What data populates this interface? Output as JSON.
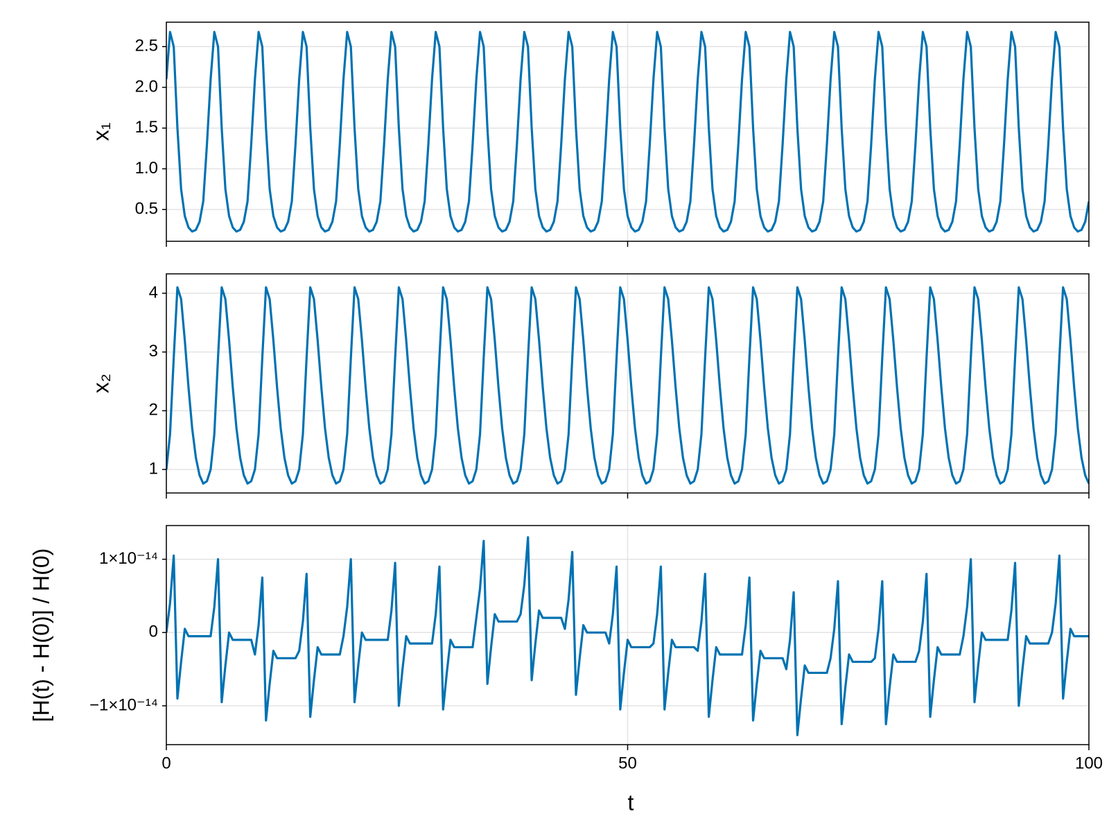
{
  "chart_data": {
    "type": "line",
    "xlabel": "t",
    "xlim": [
      0,
      100
    ],
    "xticks": [
      0,
      50,
      100
    ],
    "grid": true,
    "x": [
      0,
      0.4,
      0.8,
      1.2,
      1.6,
      2,
      2.4,
      2.8,
      3.2,
      3.6,
      4,
      4.4,
      4.8,
      5.2,
      5.6,
      6,
      6.4,
      6.8,
      7.2,
      7.6,
      8,
      8.4,
      8.8,
      9.2,
      9.6,
      10,
      10.4,
      10.8,
      11.2,
      11.6,
      12,
      12.4,
      12.8,
      13.2,
      13.6,
      14,
      14.4,
      14.8,
      15.2,
      15.6,
      16,
      16.4,
      16.8,
      17.2,
      17.6,
      18,
      18.4,
      18.8,
      19.2,
      19.6,
      20,
      20.4,
      20.8,
      21.2,
      21.6,
      22,
      22.4,
      22.8,
      23.2,
      23.6,
      24,
      24.4,
      24.8,
      25.2,
      25.6,
      26,
      26.4,
      26.8,
      27.2,
      27.6,
      28,
      28.4,
      28.8,
      29.2,
      29.6,
      30,
      30.4,
      30.8,
      31.2,
      31.6,
      32,
      32.4,
      32.8,
      33.2,
      33.6,
      34,
      34.4,
      34.8,
      35.2,
      35.6,
      36,
      36.4,
      36.8,
      37.2,
      37.6,
      38,
      38.4,
      38.8,
      39.2,
      39.6,
      40,
      40.4,
      40.8,
      41.2,
      41.6,
      42,
      42.4,
      42.8,
      43.2,
      43.6,
      44,
      44.4,
      44.8,
      45.2,
      45.6,
      46,
      46.4,
      46.8,
      47.2,
      47.6,
      48,
      48.4,
      48.8,
      49.2,
      49.6,
      50,
      50.4,
      50.8,
      51.2,
      51.6,
      52,
      52.4,
      52.8,
      53.2,
      53.6,
      54,
      54.4,
      54.8,
      55.2,
      55.6,
      56,
      56.4,
      56.8,
      57.2,
      57.6,
      58,
      58.4,
      58.8,
      59.2,
      59.6,
      60,
      60.4,
      60.8,
      61.2,
      61.6,
      62,
      62.4,
      62.8,
      63.2,
      63.6,
      64,
      64.4,
      64.8,
      65.2,
      65.6,
      66,
      66.4,
      66.8,
      67.2,
      67.6,
      68,
      68.4,
      68.8,
      69.2,
      69.6,
      70,
      70.4,
      70.8,
      71.2,
      71.6,
      72,
      72.4,
      72.8,
      73.2,
      73.6,
      74,
      74.4,
      74.8,
      75.2,
      75.6,
      76,
      76.4,
      76.8,
      77.2,
      77.6,
      78,
      78.4,
      78.8,
      79.2,
      79.6,
      80,
      80.4,
      80.8,
      81.2,
      81.6,
      82,
      82.4,
      82.8,
      83.2,
      83.6,
      84,
      84.4,
      84.8,
      85.2,
      85.6,
      86,
      86.4,
      86.8,
      87.2,
      87.6,
      88,
      88.4,
      88.8,
      89.2,
      89.6,
      90,
      90.4,
      90.8,
      91.2,
      91.6,
      92,
      92.4,
      92.8,
      93.2,
      93.6,
      94,
      94.4,
      94.8,
      95.2,
      95.6,
      96,
      96.4,
      96.8,
      97.2,
      97.6,
      98,
      98.4,
      98.8,
      99.2,
      99.6,
      100
    ],
    "panels": [
      {
        "ylabel": "x₁",
        "ylim": [
          0.11,
          2.8
        ],
        "yticks": [
          0.5,
          {
            "value": 1,
            "label": "1.0"
          },
          1.5,
          {
            "value": 2,
            "label": "2.0"
          },
          2.5
        ],
        "series": [
          {
            "color": "#0072b2",
            "values": [
              2.1,
              2.68,
              2.5,
              1.5,
              0.75,
              0.42,
              0.28,
              0.23,
              0.25,
              0.35,
              0.6,
              1.3,
              2.1,
              2.68,
              2.5,
              1.5,
              0.75,
              0.42,
              0.28,
              0.23,
              0.25,
              0.35,
              0.6,
              1.3,
              2.1,
              2.68,
              2.5,
              1.5,
              0.75,
              0.42,
              0.28,
              0.23,
              0.25,
              0.35,
              0.6,
              1.3,
              2.1,
              2.68,
              2.5,
              1.5,
              0.75,
              0.42,
              0.28,
              0.23,
              0.25,
              0.35,
              0.6,
              1.3,
              2.1,
              2.68,
              2.5,
              1.5,
              0.75,
              0.42,
              0.28,
              0.23,
              0.25,
              0.35,
              0.6,
              1.3,
              2.1,
              2.68,
              2.5,
              1.5,
              0.75,
              0.42,
              0.28,
              0.23,
              0.25,
              0.35,
              0.6,
              1.3,
              2.1,
              2.68,
              2.5,
              1.5,
              0.75,
              0.42,
              0.28,
              0.23,
              0.25,
              0.35,
              0.6,
              1.3,
              2.1,
              2.68,
              2.5,
              1.5,
              0.75,
              0.42,
              0.28,
              0.23,
              0.25,
              0.35,
              0.6,
              1.3,
              2.1,
              2.68,
              2.5,
              1.5,
              0.75,
              0.42,
              0.28,
              0.23,
              0.25,
              0.35,
              0.6,
              1.3,
              2.1,
              2.68,
              2.5,
              1.5,
              0.75,
              0.42,
              0.28,
              0.23,
              0.25,
              0.35,
              0.6,
              1.3,
              2.1,
              2.68,
              2.5,
              1.5,
              0.75,
              0.42,
              0.28,
              0.23,
              0.25,
              0.35,
              0.6,
              1.3,
              2.1,
              2.68,
              2.5,
              1.5,
              0.75,
              0.42,
              0.28,
              0.23,
              0.25,
              0.35,
              0.6,
              1.3,
              2.1,
              2.68,
              2.5,
              1.5,
              0.75,
              0.42,
              0.28,
              0.23,
              0.25,
              0.35,
              0.6,
              1.3,
              2.1,
              2.68,
              2.5,
              1.5,
              0.75,
              0.42,
              0.28,
              0.23,
              0.25,
              0.35,
              0.6,
              1.3,
              2.1,
              2.68,
              2.5,
              1.5,
              0.75,
              0.42,
              0.28,
              0.23,
              0.25,
              0.35,
              0.6,
              1.3,
              2.1,
              2.68,
              2.5,
              1.5,
              0.75,
              0.42,
              0.28,
              0.23,
              0.25,
              0.35,
              0.6,
              1.3,
              2.1,
              2.68,
              2.5,
              1.5,
              0.75,
              0.42,
              0.28,
              0.23,
              0.25,
              0.35,
              0.6,
              1.3,
              2.1,
              2.68,
              2.5,
              1.5,
              0.75,
              0.42,
              0.28,
              0.23,
              0.25,
              0.35,
              0.6,
              1.3,
              2.1,
              2.68,
              2.5,
              1.5,
              0.75,
              0.42,
              0.28,
              0.23,
              0.25,
              0.35,
              0.6,
              1.3,
              2.1,
              2.68,
              2.5,
              1.5,
              0.75,
              0.42,
              0.28,
              0.23,
              0.25,
              0.35,
              0.6,
              1.3,
              2.1,
              2.68,
              2.5,
              1.5,
              0.75,
              0.42,
              0.28,
              0.23,
              0.25,
              0.35,
              0.6
            ]
          }
        ]
      },
      {
        "ylabel": "x₂",
        "ylim": [
          0.6,
          4.33
        ],
        "yticks": [
          1,
          2,
          3,
          4
        ],
        "series": [
          {
            "color": "#0072b2",
            "values": [
              1,
              1.6,
              2.9,
              4.1,
              3.9,
              3.2,
              2.4,
              1.7,
              1.2,
              0.9,
              0.76,
              0.8,
              1,
              1.6,
              2.9,
              4.1,
              3.9,
              3.2,
              2.4,
              1.7,
              1.2,
              0.9,
              0.76,
              0.8,
              1,
              1.6,
              2.9,
              4.1,
              3.9,
              3.2,
              2.4,
              1.7,
              1.2,
              0.9,
              0.76,
              0.8,
              1,
              1.6,
              2.9,
              4.1,
              3.9,
              3.2,
              2.4,
              1.7,
              1.2,
              0.9,
              0.76,
              0.8,
              1,
              1.6,
              2.9,
              4.1,
              3.9,
              3.2,
              2.4,
              1.7,
              1.2,
              0.9,
              0.76,
              0.8,
              1,
              1.6,
              2.9,
              4.1,
              3.9,
              3.2,
              2.4,
              1.7,
              1.2,
              0.9,
              0.76,
              0.8,
              1,
              1.6,
              2.9,
              4.1,
              3.9,
              3.2,
              2.4,
              1.7,
              1.2,
              0.9,
              0.76,
              0.8,
              1,
              1.6,
              2.9,
              4.1,
              3.9,
              3.2,
              2.4,
              1.7,
              1.2,
              0.9,
              0.76,
              0.8,
              1,
              1.6,
              2.9,
              4.1,
              3.9,
              3.2,
              2.4,
              1.7,
              1.2,
              0.9,
              0.76,
              0.8,
              1,
              1.6,
              2.9,
              4.1,
              3.9,
              3.2,
              2.4,
              1.7,
              1.2,
              0.9,
              0.76,
              0.8,
              1,
              1.6,
              2.9,
              4.1,
              3.9,
              3.2,
              2.4,
              1.7,
              1.2,
              0.9,
              0.76,
              0.8,
              1,
              1.6,
              2.9,
              4.1,
              3.9,
              3.2,
              2.4,
              1.7,
              1.2,
              0.9,
              0.76,
              0.8,
              1,
              1.6,
              2.9,
              4.1,
              3.9,
              3.2,
              2.4,
              1.7,
              1.2,
              0.9,
              0.76,
              0.8,
              1,
              1.6,
              2.9,
              4.1,
              3.9,
              3.2,
              2.4,
              1.7,
              1.2,
              0.9,
              0.76,
              0.8,
              1,
              1.6,
              2.9,
              4.1,
              3.9,
              3.2,
              2.4,
              1.7,
              1.2,
              0.9,
              0.76,
              0.8,
              1,
              1.6,
              2.9,
              4.1,
              3.9,
              3.2,
              2.4,
              1.7,
              1.2,
              0.9,
              0.76,
              0.8,
              1,
              1.6,
              2.9,
              4.1,
              3.9,
              3.2,
              2.4,
              1.7,
              1.2,
              0.9,
              0.76,
              0.8,
              1,
              1.6,
              2.9,
              4.1,
              3.9,
              3.2,
              2.4,
              1.7,
              1.2,
              0.9,
              0.76,
              0.8,
              1,
              1.6,
              2.9,
              4.1,
              3.9,
              3.2,
              2.4,
              1.7,
              1.2,
              0.9,
              0.76,
              0.8,
              1,
              1.6,
              2.9,
              4.1,
              3.9,
              3.2,
              2.4,
              1.7,
              1.2,
              0.9,
              0.76,
              0.8,
              1,
              1.6,
              2.9,
              4.1,
              3.9,
              3.2,
              2.4,
              1.7,
              1.2,
              0.9,
              0.76
            ]
          }
        ]
      },
      {
        "ylabel": "[H(t) - H(0)] / H(0)",
        "ylim": [
          -1.53e-14,
          1.46e-14
        ],
        "yticks": [
          {
            "value": -1e-14,
            "label": "−1×10⁻¹⁴"
          },
          0,
          {
            "value": 1e-14,
            "label": "1×10⁻¹⁴"
          }
        ],
        "series": [
          {
            "color": "#0072b2",
            "values": [
              0,
              4e-15,
              1.05e-14,
              -9e-15,
              -4e-15,
              5e-16,
              -5e-16,
              -5e-16,
              -5e-16,
              -5e-16,
              -5e-16,
              -5e-16,
              -5e-16,
              3.5e-15,
              1e-14,
              -9.5e-15,
              -4.5e-15,
              0,
              -1e-15,
              -1e-15,
              -1e-15,
              -1e-15,
              -1e-15,
              -1e-15,
              -3e-15,
              1e-15,
              7.5e-15,
              -1.2e-14,
              -7e-15,
              -2.5e-15,
              -3.5e-15,
              -3.5e-15,
              -3.5e-15,
              -3.5e-15,
              -3.5e-15,
              -3.5e-15,
              -2.5e-15,
              1.5e-15,
              8e-15,
              -1.15e-14,
              -6.5e-15,
              -2e-15,
              -3e-15,
              -3e-15,
              -3e-15,
              -3e-15,
              -3e-15,
              -3e-15,
              -5e-16,
              3.5e-15,
              1e-14,
              -9.5e-15,
              -4.5e-15,
              0,
              -1e-15,
              -1e-15,
              -1e-15,
              -1e-15,
              -1e-15,
              -1e-15,
              -1e-15,
              3e-15,
              9.5e-15,
              -1e-14,
              -5e-15,
              -5e-16,
              -1.5e-15,
              -1.5e-15,
              -1.5e-15,
              -1.5e-15,
              -1.5e-15,
              -1.5e-15,
              -1.5e-15,
              2.5e-15,
              9e-15,
              -1.05e-14,
              -5.5e-15,
              -1e-15,
              -2e-15,
              -2e-15,
              -2e-15,
              -2e-15,
              -2e-15,
              -2e-15,
              2e-15,
              6e-15,
              1.25e-14,
              -7e-15,
              -2e-15,
              2.5e-15,
              1.5e-15,
              1.5e-15,
              1.5e-15,
              1.5e-15,
              1.5e-15,
              1.5e-15,
              2.5e-15,
              6.5e-15,
              1.3e-14,
              -6.5e-15,
              -1.5e-15,
              3e-15,
              2e-15,
              2e-15,
              2e-15,
              2e-15,
              2e-15,
              2e-15,
              5e-16,
              4.5e-15,
              1.1e-14,
              -8.5e-15,
              -3.5e-15,
              1e-15,
              0,
              0,
              0,
              0,
              0,
              0,
              -1.5e-15,
              2.5e-15,
              9e-15,
              -1.05e-14,
              -5.5e-15,
              -1e-15,
              -2e-15,
              -2e-15,
              -2e-15,
              -2e-15,
              -2e-15,
              -2e-15,
              -1.5e-15,
              2.5e-15,
              9e-15,
              -1.05e-14,
              -5.5e-15,
              -1e-15,
              -2e-15,
              -2e-15,
              -2e-15,
              -2e-15,
              -2e-15,
              -2e-15,
              -2.5e-15,
              1.5e-15,
              8e-15,
              -1.15e-14,
              -6.5e-15,
              -2e-15,
              -3e-15,
              -3e-15,
              -3e-15,
              -3e-15,
              -3e-15,
              -3e-15,
              -3e-15,
              1e-15,
              7.5e-15,
              -1.2e-14,
              -7e-15,
              -2.5e-15,
              -3.5e-15,
              -3.5e-15,
              -3.5e-15,
              -3.5e-15,
              -3.5e-15,
              -3.5e-15,
              -5e-15,
              -1e-15,
              5.5e-15,
              -1.4e-14,
              -9e-15,
              -4.5e-15,
              -5.5e-15,
              -5.5e-15,
              -5.5e-15,
              -5.5e-15,
              -5.5e-15,
              -5.5e-15,
              -3.5e-15,
              5e-16,
              7e-15,
              -1.25e-14,
              -7.5e-15,
              -3e-15,
              -4e-15,
              -4e-15,
              -4e-15,
              -4e-15,
              -4e-15,
              -4e-15,
              -3.5e-15,
              5e-16,
              7e-15,
              -1.25e-14,
              -7.5e-15,
              -3e-15,
              -4e-15,
              -4e-15,
              -4e-15,
              -4e-15,
              -4e-15,
              -4e-15,
              -2.5e-15,
              1.5e-15,
              8e-15,
              -1.15e-14,
              -6.5e-15,
              -2e-15,
              -3e-15,
              -3e-15,
              -3e-15,
              -3e-15,
              -3e-15,
              -3e-15,
              -5e-16,
              3.5e-15,
              1e-14,
              -9.5e-15,
              -4.5e-15,
              0,
              -1e-15,
              -1e-15,
              -1e-15,
              -1e-15,
              -1e-15,
              -1e-15,
              -1e-15,
              3e-15,
              9.5e-15,
              -1e-14,
              -5e-15,
              -5e-16,
              -1.5e-15,
              -1.5e-15,
              -1.5e-15,
              -1.5e-15,
              -1.5e-15,
              -1.5e-15,
              0,
              4e-15,
              1.05e-14,
              -9e-15,
              -4e-15,
              5e-16,
              -5e-16,
              -5e-16,
              -5e-16,
              -5e-16,
              -5e-16
            ]
          }
        ]
      }
    ]
  }
}
